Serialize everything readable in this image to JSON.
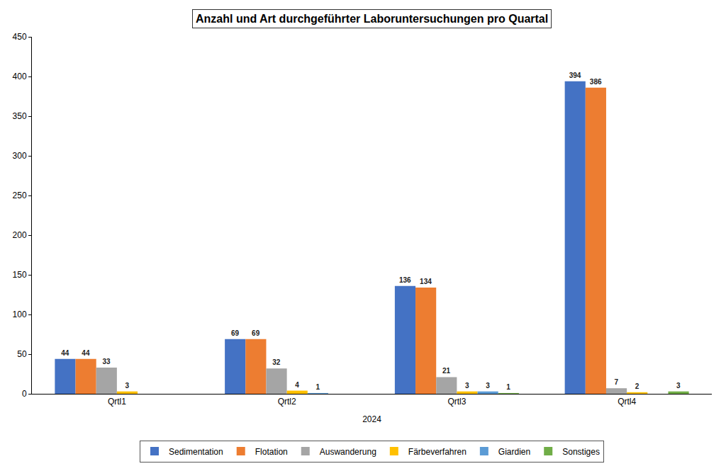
{
  "chart_data": {
    "type": "bar",
    "title": "Anzahl und Art durchgeführter Laboruntersuchungen pro Quartal",
    "x_label": "2024",
    "categories": [
      "Qrtl1",
      "Qrtl2",
      "Qrtl3",
      "Qrtl4"
    ],
    "series": [
      {
        "name": "Sedimentation",
        "color": "#4472c4",
        "values": [
          44,
          69,
          136,
          394
        ]
      },
      {
        "name": "Flotation",
        "color": "#ed7d31",
        "values": [
          44,
          69,
          134,
          386
        ]
      },
      {
        "name": "Auswanderung",
        "color": "#a5a5a5",
        "values": [
          33,
          32,
          21,
          7
        ]
      },
      {
        "name": "Färbeverfahren",
        "color": "#ffc000",
        "values": [
          3,
          4,
          3,
          2
        ]
      },
      {
        "name": "Giardien",
        "color": "#5b9bd5",
        "values": [
          null,
          1,
          3,
          null
        ]
      },
      {
        "name": "Sonstiges",
        "color": "#70ad47",
        "values": [
          null,
          null,
          1,
          3
        ]
      }
    ],
    "ylim": [
      0,
      450
    ],
    "yticks": [
      0,
      50,
      100,
      150,
      200,
      250,
      300,
      350,
      400,
      450
    ],
    "grid": false,
    "legend": "bottom",
    "data_labels": true
  }
}
